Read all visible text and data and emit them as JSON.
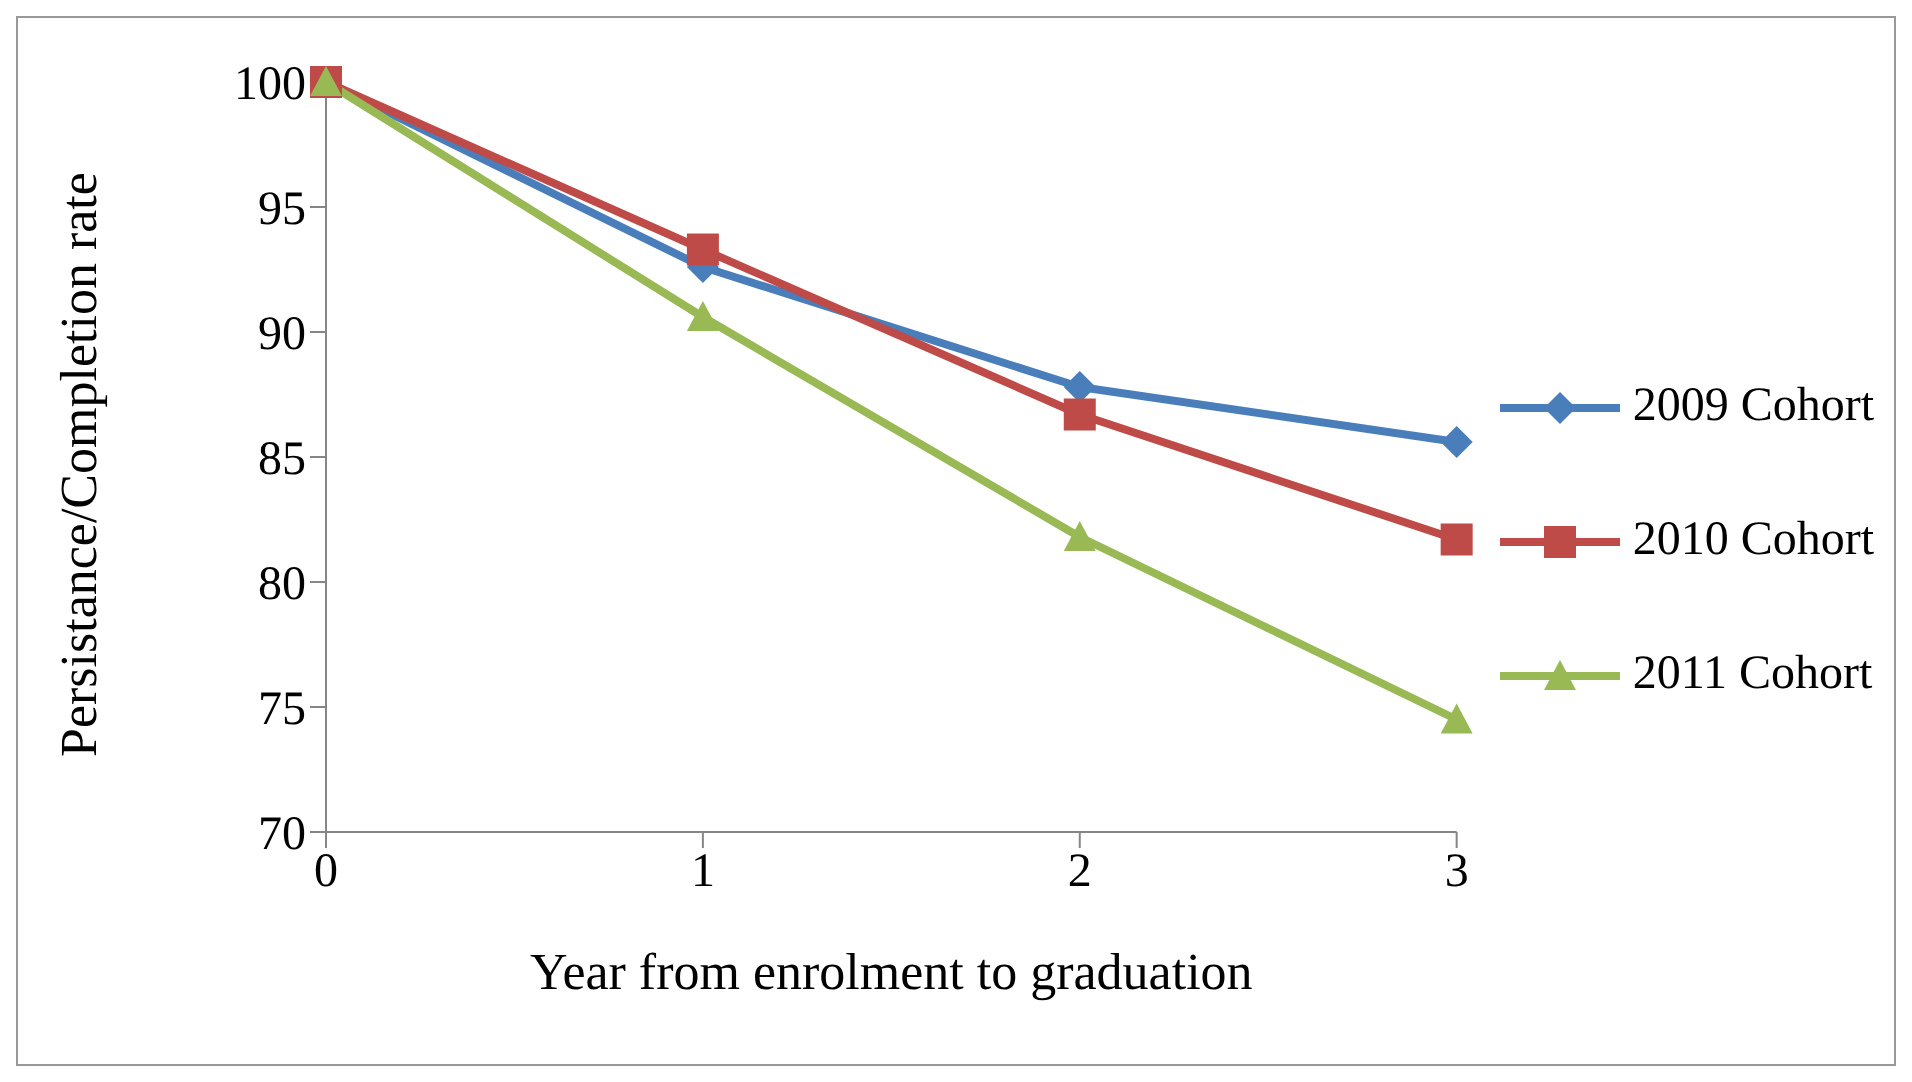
{
  "chart_data": {
    "type": "line",
    "xlabel": "Year from enrolment to graduation",
    "ylabel": "Persistance/Completion rate",
    "x": [
      0,
      1,
      2,
      3
    ],
    "xlim": [
      0,
      3
    ],
    "xticks": [
      0,
      1,
      2,
      3
    ],
    "ylim": [
      70,
      100
    ],
    "yticks": [
      70,
      75,
      80,
      85,
      90,
      95,
      100
    ],
    "grid": false,
    "legend": "right",
    "line_style": "solid",
    "series": [
      {
        "name": "2009 Cohort",
        "color": "#4a7ebb",
        "marker": "diamond",
        "values": [
          100,
          92.6,
          87.8,
          85.6
        ]
      },
      {
        "name": "2010 Cohort",
        "color": "#be4b48",
        "marker": "square",
        "values": [
          100,
          93.3,
          86.7,
          81.7
        ]
      },
      {
        "name": "2011 Cohort",
        "color": "#98b954",
        "marker": "triangle",
        "values": [
          100,
          90.6,
          81.8,
          74.5
        ]
      }
    ]
  }
}
